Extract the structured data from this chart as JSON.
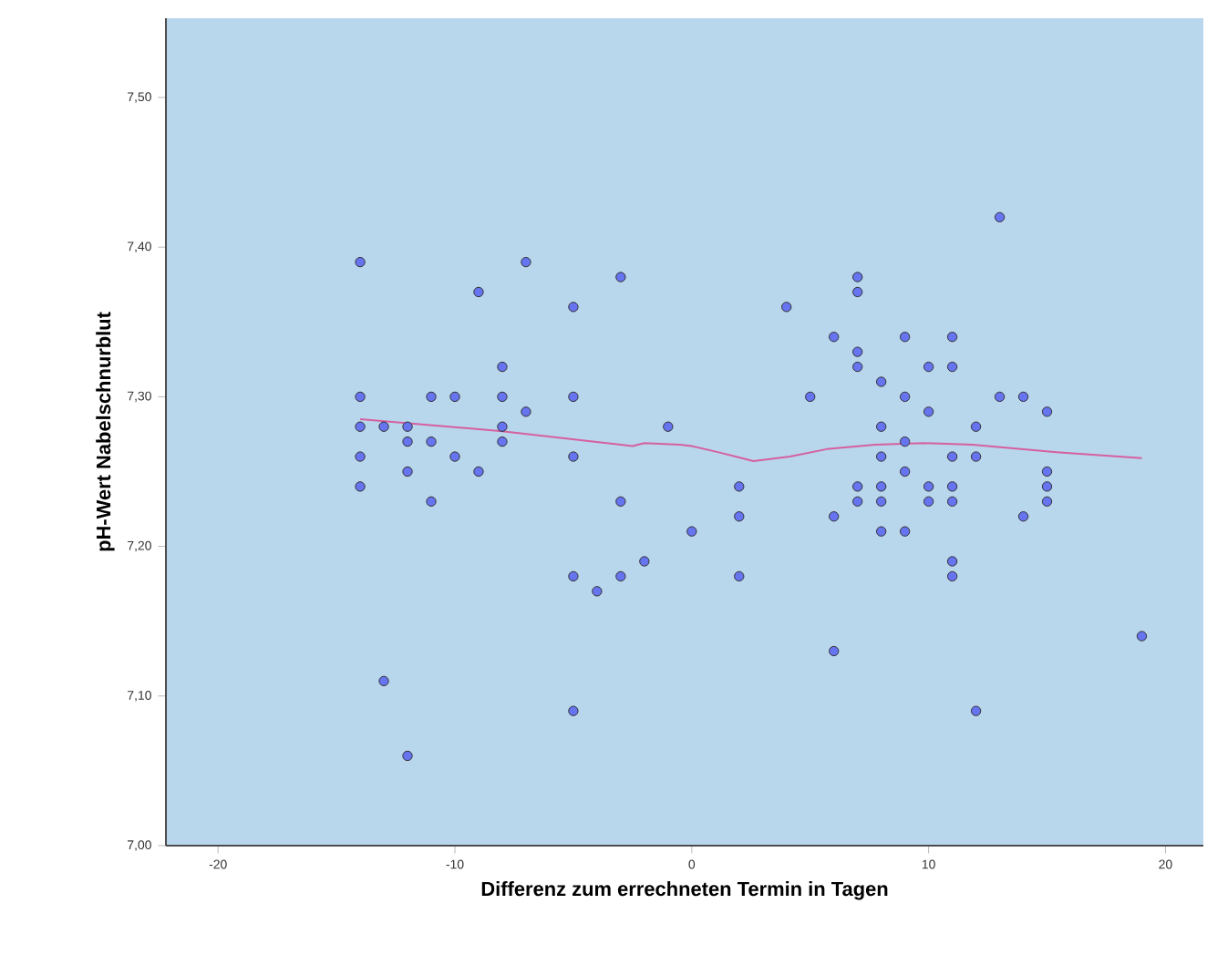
{
  "chart_data": {
    "type": "scatter",
    "xlabel": "Differenz zum errechneten Termin in Tagen",
    "ylabel": "pH-Wert Nabelschnurblut",
    "xlim": [
      -22.2,
      21.6
    ],
    "ylim": [
      7.0,
      7.553
    ],
    "xticks": [
      -20,
      -10,
      0,
      10,
      20
    ],
    "yticks": [
      {
        "value": 7.0,
        "label": "7,00"
      },
      {
        "value": 7.1,
        "label": "7,10"
      },
      {
        "value": 7.2,
        "label": "7,20"
      },
      {
        "value": 7.3,
        "label": "7,30"
      },
      {
        "value": 7.4,
        "label": "7,40"
      },
      {
        "value": 7.5,
        "label": "7,50"
      }
    ],
    "series": [
      {
        "marker": "circle",
        "color": "#6674f0",
        "x": [
          -14,
          -14,
          -14,
          -14,
          -14,
          -13,
          -13,
          -12,
          -12,
          -12,
          -12,
          -11,
          -11,
          -11,
          -10,
          -10,
          -9,
          -9,
          -8,
          -8,
          -8,
          -8,
          -7,
          -7,
          -5,
          -5,
          -5,
          -5,
          -5,
          -4,
          -3,
          -3,
          -3,
          -2,
          -1,
          0,
          2,
          2,
          2,
          4,
          5,
          6,
          6,
          6,
          7,
          7,
          7,
          7,
          7,
          7,
          8,
          8,
          8,
          8,
          8,
          8,
          9,
          9,
          9,
          9,
          9,
          10,
          10,
          10,
          10,
          11,
          11,
          11,
          11,
          11,
          11,
          11,
          12,
          12,
          12,
          13,
          13,
          14,
          14,
          15,
          15,
          15,
          15,
          19
        ],
        "values": [
          7.39,
          7.3,
          7.28,
          7.26,
          7.24,
          7.28,
          7.11,
          7.28,
          7.27,
          7.25,
          7.06,
          7.3,
          7.27,
          7.23,
          7.3,
          7.26,
          7.37,
          7.25,
          7.32,
          7.3,
          7.28,
          7.27,
          7.39,
          7.29,
          7.36,
          7.3,
          7.26,
          7.18,
          7.09,
          7.17,
          7.38,
          7.23,
          7.18,
          7.19,
          7.28,
          7.21,
          7.24,
          7.22,
          7.18,
          7.36,
          7.3,
          7.34,
          7.22,
          7.13,
          7.38,
          7.37,
          7.33,
          7.32,
          7.24,
          7.23,
          7.31,
          7.28,
          7.26,
          7.24,
          7.23,
          7.21,
          7.34,
          7.3,
          7.27,
          7.25,
          7.21,
          7.32,
          7.29,
          7.24,
          7.23,
          7.34,
          7.32,
          7.26,
          7.24,
          7.23,
          7.19,
          7.18,
          7.28,
          7.26,
          7.09,
          7.42,
          7.3,
          7.3,
          7.22,
          7.29,
          7.25,
          7.24,
          7.23,
          7.14
        ]
      },
      {
        "type": "line",
        "marker": "none",
        "color": "#d660a0",
        "x": [
          -14,
          -8,
          -3,
          -2.5,
          -2,
          -0.5,
          0,
          1.1,
          1.85,
          2.6,
          4.15,
          5.7,
          7.75,
          9.8,
          11.85,
          15.4,
          19
        ],
        "values": [
          7.285,
          7.277,
          7.268,
          7.267,
          7.269,
          7.268,
          7.267,
          7.263,
          7.26,
          7.257,
          7.26,
          7.265,
          7.268,
          7.269,
          7.268,
          7.263,
          7.259
        ]
      }
    ]
  }
}
